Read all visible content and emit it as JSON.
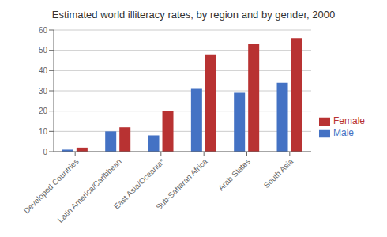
{
  "chart_data": {
    "type": "bar",
    "title": "Estimated world illiteracy rates, by region and by gender, 2000",
    "categories": [
      "Developed Countries",
      "Latin America/Caribbean",
      "East Asia/Oceania*",
      "Sub-Saharan Africa",
      "Arab States",
      "South Asia"
    ],
    "series": [
      {
        "name": "Male",
        "color": "#4472C4",
        "values": [
          1,
          10,
          8,
          31,
          29,
          34
        ]
      },
      {
        "name": "Female",
        "color": "#B83232",
        "values": [
          2,
          12,
          20,
          48,
          53,
          56
        ]
      }
    ],
    "ylim": [
      0,
      60
    ],
    "yticks": [
      0,
      10,
      20,
      30,
      40,
      50,
      60
    ],
    "grid": true,
    "legend": "right"
  }
}
